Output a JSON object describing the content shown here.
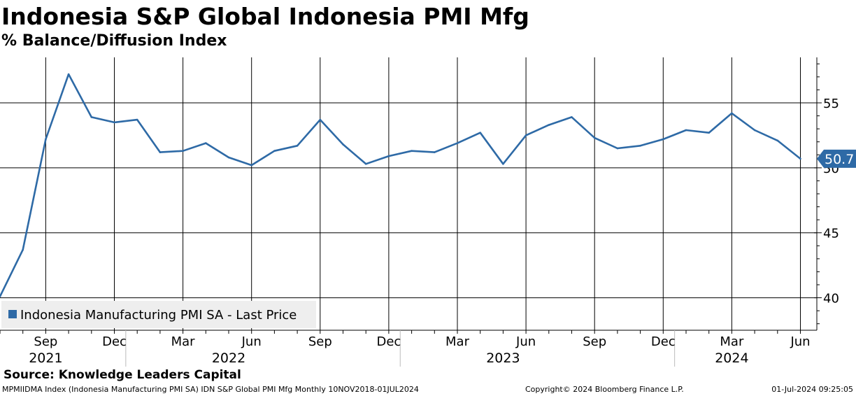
{
  "header": {
    "title": "Indonesia S&P Global Indonesia PMI Mfg",
    "subtitle": "% Balance/Diffusion Index"
  },
  "source": "Source: Knowledge Leaders Capital",
  "footer": {
    "left": "MPMIIDMA Index (Indonesia Manufacturing PMI SA) IDN S&P Global PMI Mfg  Monthly 10NOV2018-01JUL2024",
    "center": "Copyright© 2024 Bloomberg Finance L.P.",
    "right": "01-Jul-2024 09:25:05"
  },
  "colors": {
    "series": "#2e6aa6",
    "grid": "#000000",
    "legend_bg": "#eeeeee"
  },
  "chart_data": {
    "type": "line",
    "series": [
      {
        "name": "Indonesia Manufacturing PMI SA - Last Price",
        "x": [
          "2021-07",
          "2021-08",
          "2021-09",
          "2021-10",
          "2021-11",
          "2021-12",
          "2022-01",
          "2022-02",
          "2022-03",
          "2022-04",
          "2022-05",
          "2022-06",
          "2022-07",
          "2022-08",
          "2022-09",
          "2022-10",
          "2022-11",
          "2022-12",
          "2023-01",
          "2023-02",
          "2023-03",
          "2023-04",
          "2023-05",
          "2023-06",
          "2023-07",
          "2023-08",
          "2023-09",
          "2023-10",
          "2023-11",
          "2023-12",
          "2024-01",
          "2024-02",
          "2024-03",
          "2024-04",
          "2024-05",
          "2024-06"
        ],
        "values": [
          40.1,
          43.7,
          52.2,
          57.2,
          53.9,
          53.5,
          53.7,
          51.2,
          51.3,
          51.9,
          50.8,
          50.2,
          51.3,
          51.7,
          53.7,
          51.8,
          50.3,
          50.9,
          51.3,
          51.2,
          51.9,
          52.7,
          50.3,
          52.5,
          53.3,
          53.9,
          52.3,
          51.5,
          51.7,
          52.2,
          52.9,
          52.7,
          54.2,
          52.9,
          52.1,
          50.7
        ]
      }
    ],
    "yaxis": {
      "ticks": [
        40,
        45,
        50,
        55
      ],
      "ylim": [
        37.5,
        58.5
      ],
      "side": "right"
    },
    "xaxis": {
      "months": [
        {
          "date": "2021-09",
          "label": "Sep"
        },
        {
          "date": "2021-12",
          "label": "Dec"
        },
        {
          "date": "2022-03",
          "label": "Mar"
        },
        {
          "date": "2022-06",
          "label": "Jun"
        },
        {
          "date": "2022-09",
          "label": "Sep"
        },
        {
          "date": "2022-12",
          "label": "Dec"
        },
        {
          "date": "2023-03",
          "label": "Mar"
        },
        {
          "date": "2023-06",
          "label": "Jun"
        },
        {
          "date": "2023-09",
          "label": "Sep"
        },
        {
          "date": "2023-12",
          "label": "Dec"
        },
        {
          "date": "2024-03",
          "label": "Mar"
        },
        {
          "date": "2024-06",
          "label": "Jun"
        }
      ],
      "years": [
        {
          "label": "2021",
          "at": "2021-09"
        },
        {
          "label": "2022",
          "at": "2022-05"
        },
        {
          "label": "2023",
          "at": "2023-05"
        },
        {
          "label": "2024",
          "at": "2024-03"
        }
      ],
      "year_dividers": [
        "2022-01",
        "2023-01",
        "2024-01"
      ]
    },
    "last_value_label": "50.7",
    "grid": true,
    "legend": {
      "position": "bottom-left",
      "label": "Indonesia Manufacturing PMI SA - Last Price"
    }
  }
}
